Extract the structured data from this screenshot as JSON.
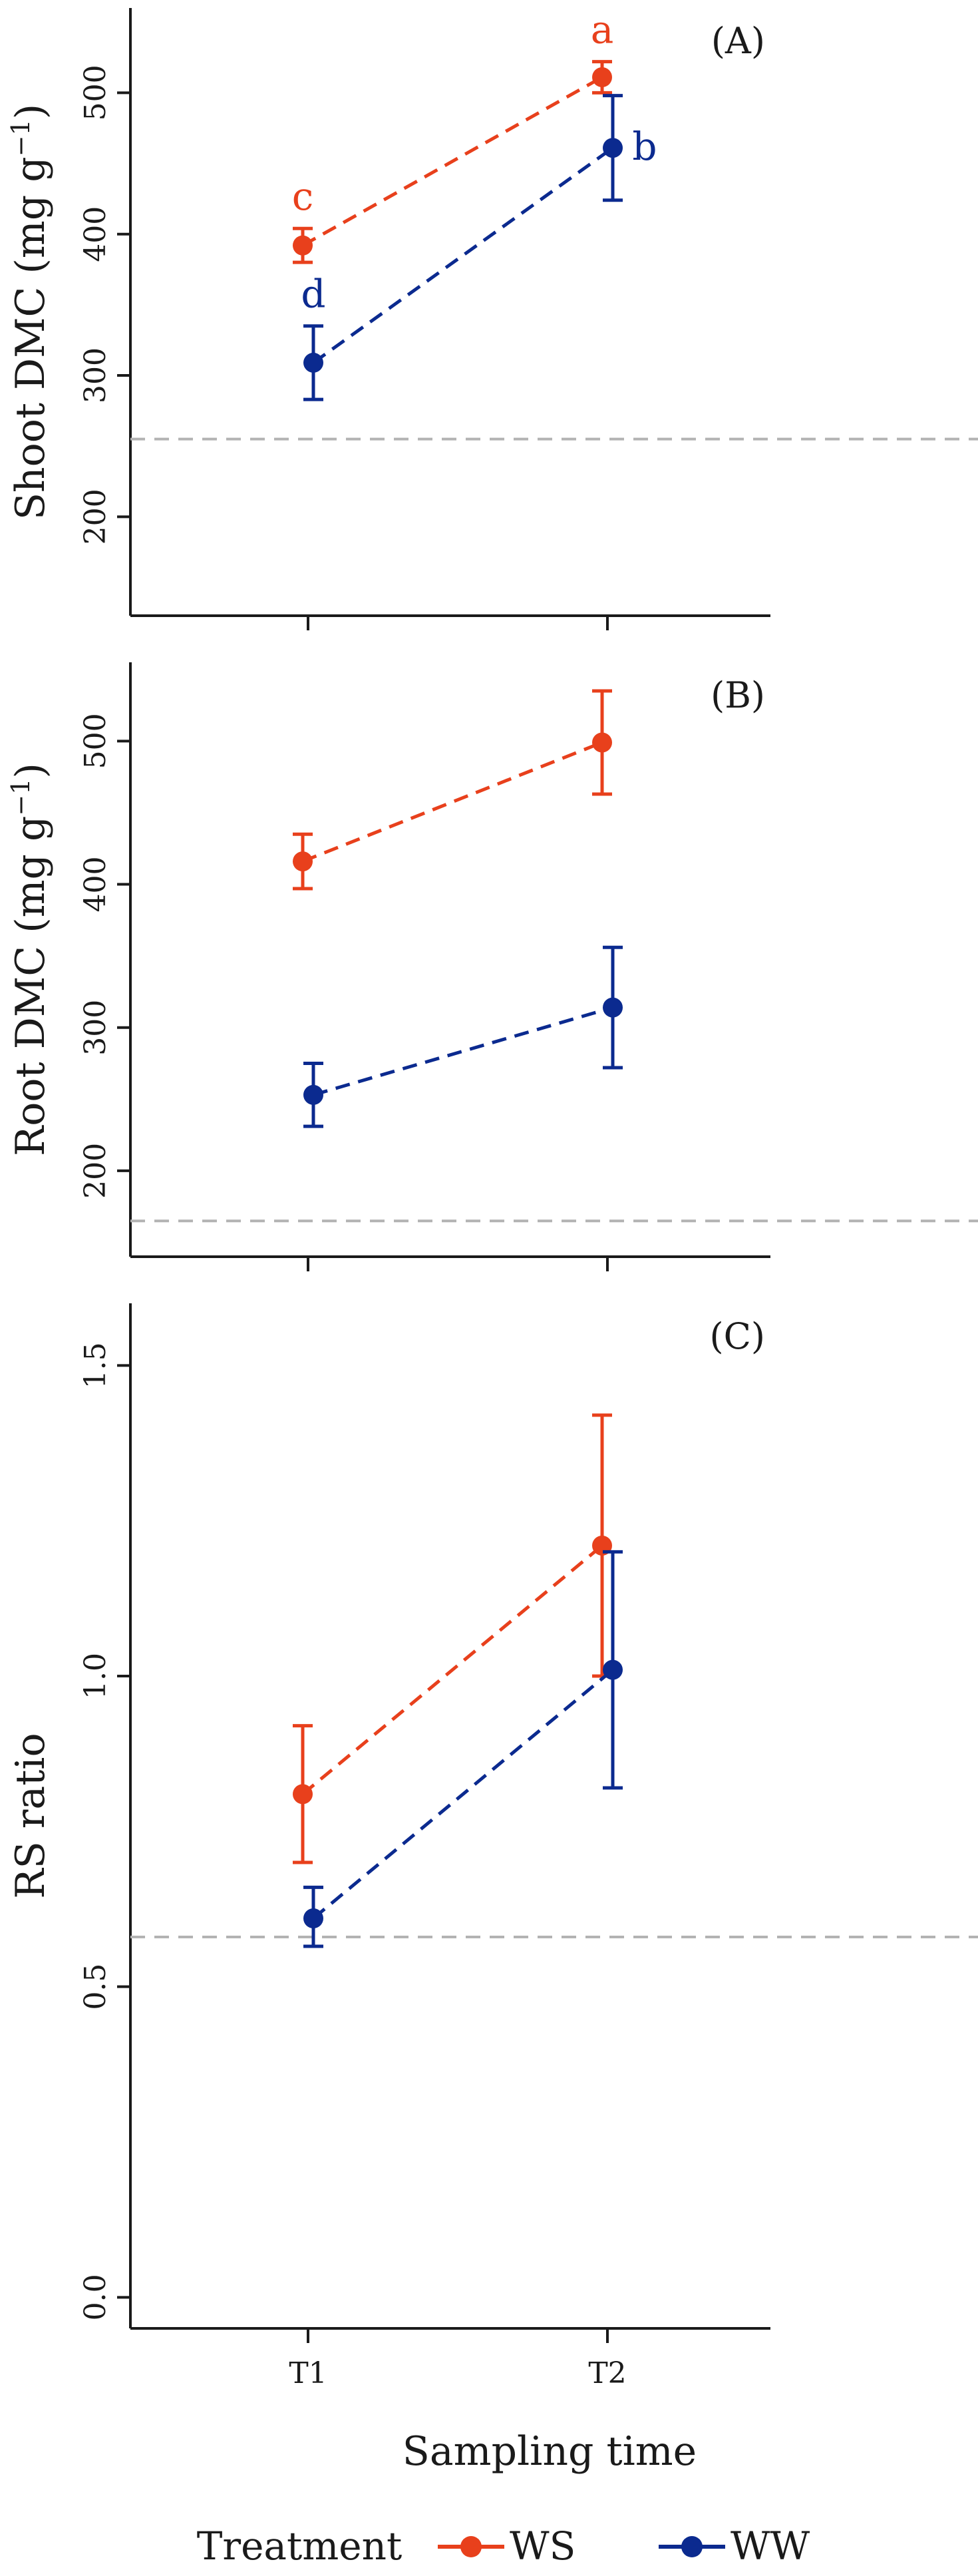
{
  "chart_data": {
    "type": "line",
    "x_title": "Sampling time",
    "categories": [
      "T1",
      "T2"
    ],
    "series_colors": {
      "WS": "#e8401c",
      "WW": "#0b2a8f"
    },
    "reference_color": "#b3b3b3",
    "panels": [
      {
        "id": "A",
        "label": "(A)",
        "ylabel_main": "Shoot DMC (mg g",
        "ylabel_sup": "−1",
        "ylabel_close": ")",
        "ylim": [
          130,
          560
        ],
        "yticks": [
          200,
          300,
          400,
          500
        ],
        "reference_line": 255,
        "series": [
          {
            "name": "WS",
            "values": [
              392,
              511
            ],
            "err_low": [
              380,
              500
            ],
            "err_high": [
              404,
              522
            ],
            "letters": [
              "c",
              "a"
            ]
          },
          {
            "name": "WW",
            "values": [
              309,
              461
            ],
            "err_low": [
              283,
              424
            ],
            "err_high": [
              335,
              498
            ],
            "letters": [
              "d",
              "b"
            ]
          }
        ]
      },
      {
        "id": "B",
        "label": "(B)",
        "ylabel_main": "Root DMC (mg g",
        "ylabel_sup": "−1",
        "ylabel_close": ")",
        "ylim": [
          140,
          555
        ],
        "yticks": [
          200,
          300,
          400,
          500
        ],
        "reference_line": 165,
        "series": [
          {
            "name": "WS",
            "values": [
              416,
              499
            ],
            "err_low": [
              397,
              463
            ],
            "err_high": [
              435,
              535
            ],
            "letters": [
              "",
              ""
            ]
          },
          {
            "name": "WW",
            "values": [
              253,
              314
            ],
            "err_low": [
              231,
              272
            ],
            "err_high": [
              275,
              356
            ],
            "letters": [
              "",
              ""
            ]
          }
        ]
      },
      {
        "id": "C",
        "label": "(C)",
        "ylabel_main": "RS ratio",
        "ylabel_sup": "",
        "ylabel_close": "",
        "ylim": [
          -0.05,
          1.6
        ],
        "yticks": [
          0.0,
          0.5,
          1.0,
          1.5
        ],
        "tick_labels": [
          "0.0",
          "0.5",
          "1.0",
          "1.5"
        ],
        "reference_line": 0.58,
        "series": [
          {
            "name": "WS",
            "values": [
              0.81,
              1.21
            ],
            "err_low": [
              0.7,
              1.0
            ],
            "err_high": [
              0.92,
              1.42
            ],
            "letters": [
              "",
              ""
            ]
          },
          {
            "name": "WW",
            "values": [
              0.61,
              1.01
            ],
            "err_low": [
              0.565,
              0.82
            ],
            "err_high": [
              0.66,
              1.2
            ],
            "letters": [
              "",
              ""
            ]
          }
        ]
      }
    ],
    "legend": {
      "title": "Treatment",
      "entries": [
        "WS",
        "WW"
      ],
      "placement": "bottom"
    }
  }
}
